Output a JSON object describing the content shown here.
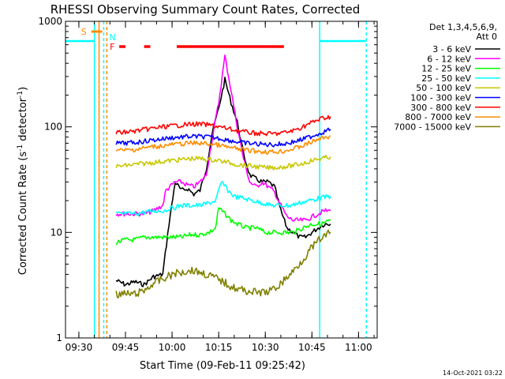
{
  "chart_data": {
    "type": "line",
    "title": "RHESSI Observing Summary Count Rates, Corrected",
    "xlabel": "Start Time (09-Feb-11 09:25:42)",
    "ylabel": "Corrected Count Rate (s⁻¹ detector⁻¹)",
    "ylabel_main": "Corrected Count Rate (s",
    "ylabel_mid": " detector",
    "ylabel_end": ")",
    "ylabel_sup": "-1",
    "y_scale": "log",
    "ylim": [
      1,
      1000
    ],
    "xlim": [
      "09:25:42",
      "11:06:00"
    ],
    "x_ticks": [
      "09:30",
      "09:45",
      "10:00",
      "10:15",
      "10:30",
      "10:45",
      "11:00"
    ],
    "y_ticks": [
      "1",
      "10",
      "100",
      "1000"
    ],
    "legend_header": [
      "Det 1,3,4,5,6,9,",
      "Att 0"
    ],
    "legend_position": "right",
    "timestamp": "14-Oct-2021 03:22",
    "flags": [
      {
        "label": "S",
        "color": "#ff8c00",
        "start": "09:34:00",
        "end": "09:37:30"
      },
      {
        "label": "N",
        "color": "#00ffff",
        "start": "09:38:30",
        "end": "09:38:30"
      },
      {
        "label": "F",
        "color": "#ff0000",
        "segments": [
          [
            "09:43:00",
            "09:45:00"
          ],
          [
            "09:51:00",
            "09:53:00"
          ],
          [
            "10:01:30",
            "10:36:00"
          ]
        ]
      }
    ],
    "markers": [
      {
        "time": "09:35:00",
        "color": "#00ffff",
        "style": "solid"
      },
      {
        "time": "09:36:30",
        "color": "#ff8c00",
        "style": "solid"
      },
      {
        "time": "09:38:00",
        "color": "#00ffff",
        "style": "dashed"
      },
      {
        "time": "09:39:00",
        "color": "#ff8c00",
        "style": "dashed"
      },
      {
        "time": "10:47:30",
        "color": "#00ffff",
        "style": "solid"
      },
      {
        "time": "11:02:30",
        "color": "#00ffff",
        "style": "dashed"
      }
    ],
    "day_night_segments": [
      {
        "color": "#00ffff",
        "level": 650,
        "start": "09:25:42",
        "end": "09:35:00"
      },
      {
        "color": "#00ffff",
        "level": 650,
        "start": "10:47:30",
        "end": "11:02:30"
      }
    ],
    "series": [
      {
        "name": "3 - 6 keV",
        "color": "#000000",
        "points": [
          [
            "09:42",
            3.5
          ],
          [
            "09:45",
            3.2
          ],
          [
            "09:48",
            3.4
          ],
          [
            "09:51",
            3.2
          ],
          [
            "09:54",
            3.8
          ],
          [
            "09:57",
            4.0
          ],
          [
            "09:59",
            12
          ],
          [
            "10:01",
            30
          ],
          [
            "10:03",
            25
          ],
          [
            "10:05",
            26
          ],
          [
            "10:07",
            23
          ],
          [
            "10:09",
            25
          ],
          [
            "10:11",
            40
          ],
          [
            "10:13",
            90
          ],
          [
            "10:15",
            150
          ],
          [
            "10:17",
            280
          ],
          [
            "10:19",
            170
          ],
          [
            "10:21",
            110
          ],
          [
            "10:23",
            55
          ],
          [
            "10:25",
            35
          ],
          [
            "10:27",
            32
          ],
          [
            "10:29",
            30
          ],
          [
            "10:31",
            30
          ],
          [
            "10:33",
            27
          ],
          [
            "10:35",
            16
          ],
          [
            "10:37",
            11
          ],
          [
            "10:39",
            10
          ],
          [
            "10:41",
            9
          ],
          [
            "10:43",
            9
          ],
          [
            "10:45",
            10
          ],
          [
            "10:47",
            11
          ],
          [
            "10:49",
            12
          ],
          [
            "10:51",
            12
          ]
        ]
      },
      {
        "name": "6 - 12 keV",
        "color": "#ff00ff",
        "points": [
          [
            "09:42",
            15
          ],
          [
            "09:45",
            15
          ],
          [
            "09:48",
            15
          ],
          [
            "09:51",
            15
          ],
          [
            "09:54",
            16
          ],
          [
            "09:57",
            18
          ],
          [
            "09:58",
            25
          ],
          [
            "10:01",
            30
          ],
          [
            "10:03",
            30
          ],
          [
            "10:05",
            28
          ],
          [
            "10:07",
            27
          ],
          [
            "10:09",
            30
          ],
          [
            "10:11",
            35
          ],
          [
            "10:13",
            80
          ],
          [
            "10:15",
            170
          ],
          [
            "10:17",
            470
          ],
          [
            "10:19",
            220
          ],
          [
            "10:21",
            100
          ],
          [
            "10:23",
            50
          ],
          [
            "10:25",
            30
          ],
          [
            "10:27",
            27
          ],
          [
            "10:29",
            30
          ],
          [
            "10:31",
            27
          ],
          [
            "10:33",
            24
          ],
          [
            "10:35",
            18
          ],
          [
            "10:37",
            14
          ],
          [
            "10:39",
            13
          ],
          [
            "10:41",
            13
          ],
          [
            "10:43",
            13
          ],
          [
            "10:45",
            14
          ],
          [
            "10:47",
            15
          ],
          [
            "10:49",
            16
          ],
          [
            "10:51",
            16
          ]
        ]
      },
      {
        "name": "12 - 25 keV",
        "color": "#00ff00",
        "points": [
          [
            "09:42",
            8
          ],
          [
            "09:45",
            8.5
          ],
          [
            "09:48",
            8.5
          ],
          [
            "09:51",
            9
          ],
          [
            "09:54",
            9
          ],
          [
            "09:57",
            9
          ],
          [
            "10:00",
            9
          ],
          [
            "10:03",
            9
          ],
          [
            "10:06",
            9.5
          ],
          [
            "10:09",
            9.5
          ],
          [
            "10:12",
            10
          ],
          [
            "10:14",
            11
          ],
          [
            "10:15",
            17
          ],
          [
            "10:17",
            15
          ],
          [
            "10:19",
            13
          ],
          [
            "10:21",
            12
          ],
          [
            "10:24",
            11
          ],
          [
            "10:27",
            11
          ],
          [
            "10:30",
            10
          ],
          [
            "10:33",
            10
          ],
          [
            "10:36",
            10
          ],
          [
            "10:39",
            10
          ],
          [
            "10:42",
            11
          ],
          [
            "10:45",
            12
          ],
          [
            "10:48",
            12
          ],
          [
            "10:51",
            13
          ]
        ]
      },
      {
        "name": "25 - 50 keV",
        "color": "#00ffff",
        "points": [
          [
            "09:42",
            15
          ],
          [
            "09:45",
            15
          ],
          [
            "09:48",
            15
          ],
          [
            "09:51",
            15.5
          ],
          [
            "09:54",
            16
          ],
          [
            "09:57",
            16
          ],
          [
            "10:00",
            17
          ],
          [
            "10:03",
            18
          ],
          [
            "10:06",
            18
          ],
          [
            "10:09",
            18
          ],
          [
            "10:12",
            19
          ],
          [
            "10:14",
            20
          ],
          [
            "10:16",
            30
          ],
          [
            "10:18",
            25
          ],
          [
            "10:20",
            22
          ],
          [
            "10:23",
            21
          ],
          [
            "10:26",
            20
          ],
          [
            "10:29",
            19
          ],
          [
            "10:32",
            18
          ],
          [
            "10:35",
            18
          ],
          [
            "10:38",
            18
          ],
          [
            "10:41",
            19
          ],
          [
            "10:44",
            20
          ],
          [
            "10:47",
            21
          ],
          [
            "10:51",
            22
          ]
        ]
      },
      {
        "name": "50 - 100 keV",
        "color": "#c8c800",
        "points": [
          [
            "09:42",
            42
          ],
          [
            "09:45",
            43
          ],
          [
            "09:48",
            44
          ],
          [
            "09:51",
            45
          ],
          [
            "09:54",
            46
          ],
          [
            "09:57",
            47
          ],
          [
            "10:00",
            48
          ],
          [
            "10:03",
            49
          ],
          [
            "10:06",
            50
          ],
          [
            "10:09",
            50
          ],
          [
            "10:12",
            49
          ],
          [
            "10:15",
            48
          ],
          [
            "10:18",
            46
          ],
          [
            "10:21",
            44
          ],
          [
            "10:24",
            43
          ],
          [
            "10:27",
            42
          ],
          [
            "10:30",
            41
          ],
          [
            "10:33",
            41
          ],
          [
            "10:36",
            42
          ],
          [
            "10:39",
            43
          ],
          [
            "10:42",
            45
          ],
          [
            "10:45",
            48
          ],
          [
            "10:48",
            50
          ],
          [
            "10:51",
            52
          ]
        ]
      },
      {
        "name": "100 - 300 keV",
        "color": "#0000ff",
        "points": [
          [
            "09:42",
            70
          ],
          [
            "09:45",
            70
          ],
          [
            "09:48",
            71
          ],
          [
            "09:51",
            73
          ],
          [
            "09:54",
            75
          ],
          [
            "09:57",
            77
          ],
          [
            "10:00",
            79
          ],
          [
            "10:03",
            80
          ],
          [
            "10:06",
            81
          ],
          [
            "10:09",
            81
          ],
          [
            "10:12",
            80
          ],
          [
            "10:15",
            78
          ],
          [
            "10:18",
            75
          ],
          [
            "10:21",
            72
          ],
          [
            "10:24",
            70
          ],
          [
            "10:27",
            69
          ],
          [
            "10:30",
            68
          ],
          [
            "10:33",
            68
          ],
          [
            "10:36",
            69
          ],
          [
            "10:39",
            72
          ],
          [
            "10:42",
            76
          ],
          [
            "10:45",
            82
          ],
          [
            "10:48",
            88
          ],
          [
            "10:51",
            95
          ]
        ]
      },
      {
        "name": "300 - 800 keV",
        "color": "#ff0000",
        "points": [
          [
            "09:42",
            88
          ],
          [
            "09:45",
            89
          ],
          [
            "09:48",
            91
          ],
          [
            "09:51",
            94
          ],
          [
            "09:54",
            97
          ],
          [
            "09:57",
            100
          ],
          [
            "10:00",
            102
          ],
          [
            "10:03",
            104
          ],
          [
            "10:06",
            106
          ],
          [
            "10:09",
            106
          ],
          [
            "10:12",
            104
          ],
          [
            "10:15",
            100
          ],
          [
            "10:18",
            96
          ],
          [
            "10:21",
            92
          ],
          [
            "10:24",
            89
          ],
          [
            "10:27",
            87
          ],
          [
            "10:30",
            86
          ],
          [
            "10:33",
            86
          ],
          [
            "10:36",
            88
          ],
          [
            "10:39",
            92
          ],
          [
            "10:42",
            100
          ],
          [
            "10:45",
            110
          ],
          [
            "10:48",
            120
          ],
          [
            "10:51",
            125
          ]
        ]
      },
      {
        "name": "800 - 7000 keV",
        "color": "#ff8c00",
        "points": [
          [
            "09:42",
            60
          ],
          [
            "09:45",
            60
          ],
          [
            "09:48",
            61
          ],
          [
            "09:51",
            63
          ],
          [
            "09:54",
            65
          ],
          [
            "09:57",
            66
          ],
          [
            "10:00",
            68
          ],
          [
            "10:03",
            69
          ],
          [
            "10:06",
            70
          ],
          [
            "10:09",
            70
          ],
          [
            "10:12",
            69
          ],
          [
            "10:15",
            67
          ],
          [
            "10:18",
            64
          ],
          [
            "10:21",
            62
          ],
          [
            "10:24",
            60
          ],
          [
            "10:27",
            59
          ],
          [
            "10:30",
            58
          ],
          [
            "10:33",
            58
          ],
          [
            "10:36",
            59
          ],
          [
            "10:39",
            62
          ],
          [
            "10:42",
            66
          ],
          [
            "10:45",
            72
          ],
          [
            "10:48",
            78
          ],
          [
            "10:51",
            82
          ]
        ]
      },
      {
        "name": "7000 - 15000 keV",
        "color": "#808000",
        "points": [
          [
            "09:42",
            2.6
          ],
          [
            "09:45",
            2.6
          ],
          [
            "09:48",
            2.6
          ],
          [
            "09:51",
            2.8
          ],
          [
            "09:54",
            3.3
          ],
          [
            "09:57",
            3.6
          ],
          [
            "10:00",
            4.0
          ],
          [
            "10:03",
            4.2
          ],
          [
            "10:06",
            4.4
          ],
          [
            "10:09",
            4.2
          ],
          [
            "10:12",
            3.9
          ],
          [
            "10:15",
            3.6
          ],
          [
            "10:18",
            3.2
          ],
          [
            "10:21",
            2.9
          ],
          [
            "10:24",
            2.8
          ],
          [
            "10:27",
            2.7
          ],
          [
            "10:30",
            2.7
          ],
          [
            "10:33",
            2.9
          ],
          [
            "10:36",
            3.5
          ],
          [
            "10:39",
            4.3
          ],
          [
            "10:42",
            5.5
          ],
          [
            "10:45",
            7.2
          ],
          [
            "10:48",
            8.8
          ],
          [
            "10:51",
            10
          ]
        ]
      }
    ]
  }
}
